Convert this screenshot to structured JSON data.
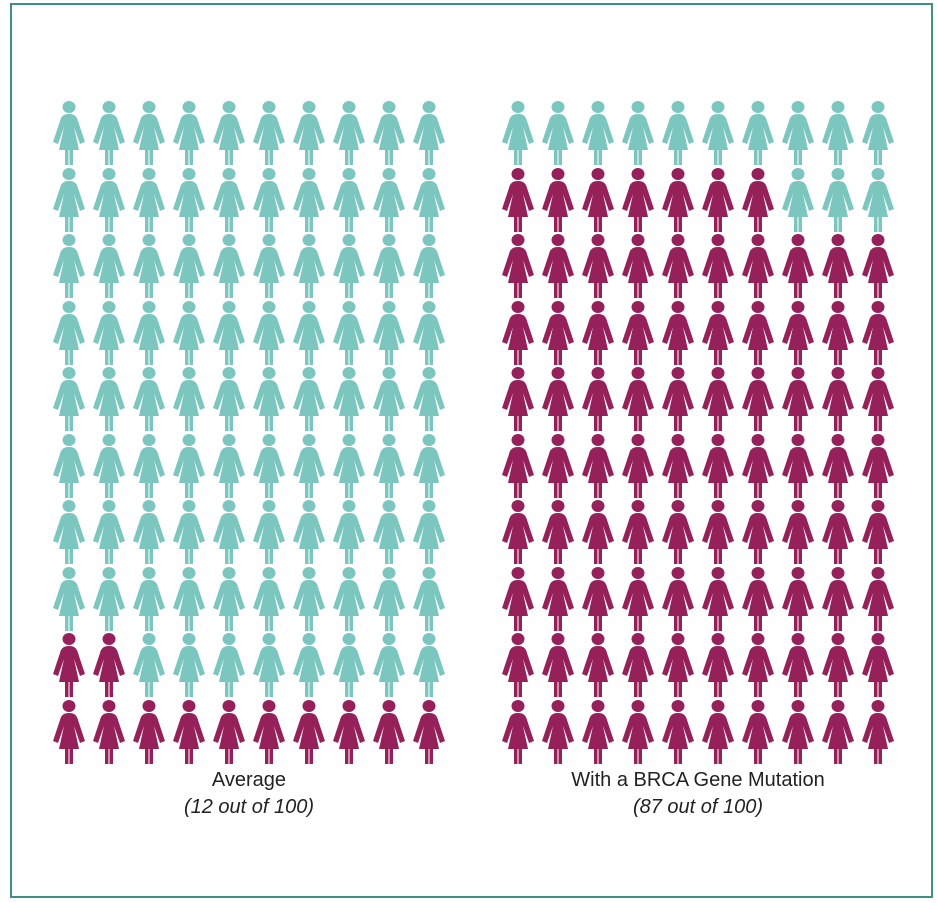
{
  "colors": {
    "highlight": "#96215a",
    "base": "#7cc6c0",
    "border": "#3f8f84"
  },
  "chart_data": [
    {
      "type": "pictograph",
      "total": 100,
      "highlighted": 12,
      "label": "Average",
      "sublabel": "(12 out of 100)"
    },
    {
      "type": "pictograph",
      "total": 100,
      "highlighted": 87,
      "label": "With a BRCA Gene Mutation",
      "sublabel": "(87 out of 100)"
    }
  ]
}
